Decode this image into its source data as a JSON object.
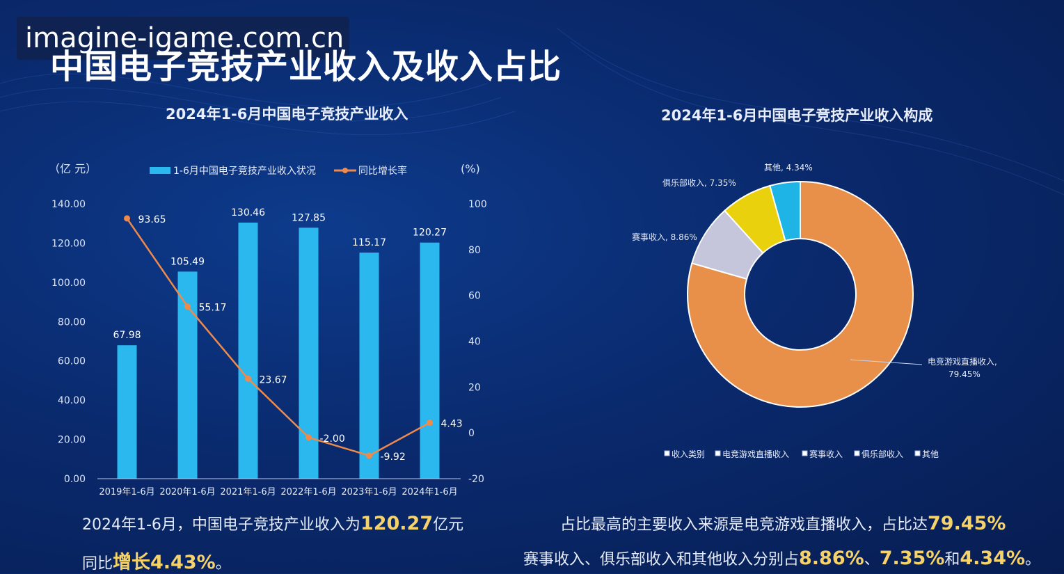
{
  "watermark": "imagine-igame.com.cn",
  "page_title": "中国电子竞技产业收入及收入占比",
  "colors": {
    "bar": "#2ab8ee",
    "line": "#f08a4b",
    "orange": "#e8904a",
    "lavender": "#c5c6dc",
    "yellow": "#e9d20d",
    "cyan": "#1fb4e6",
    "highlight": "#f6d36a"
  },
  "chart_data": [
    {
      "type": "bar",
      "title": "2024年1-6月中国电子竞技产业收入",
      "ylabel": "（亿 元）",
      "y2label": "(%)",
      "categories": [
        "2019年1-6月",
        "2020年1-6月",
        "2021年1-6月",
        "2022年1-6月",
        "2023年1-6月",
        "2024年1-6月"
      ],
      "ylim": [
        0,
        140
      ],
      "y_ticks": [
        "0.00",
        "20.00",
        "40.00",
        "60.00",
        "80.00",
        "100.00",
        "120.00",
        "140.00"
      ],
      "y2lim": [
        -20,
        100
      ],
      "y2_ticks": [
        "-20",
        "0",
        "20",
        "40",
        "60",
        "80",
        "100"
      ],
      "series": [
        {
          "name": "1-6月中国电子竞技产业收入状况",
          "type": "bar",
          "values": [
            67.98,
            105.49,
            130.46,
            127.85,
            115.17,
            120.27
          ],
          "labels": [
            "67.98",
            "105.49",
            "130.46",
            "127.85",
            "115.17",
            "120.27"
          ]
        },
        {
          "name": "同比增长率",
          "type": "line",
          "axis": "right",
          "values": [
            93.65,
            55.17,
            23.67,
            -2.0,
            -9.92,
            4.43
          ],
          "labels": [
            "93.65",
            "55.17",
            "23.67",
            "-2.00",
            "-9.92",
            "4.43"
          ]
        }
      ],
      "grid": false,
      "legend": "top"
    },
    {
      "type": "pie",
      "title": "2024年1-6月中国电子竞技产业收入构成",
      "donut": true,
      "slices": [
        {
          "name": "电竞游戏直播收入",
          "value": 79.45,
          "label": "电竞游戏直播收入,",
          "label2": "79.45%",
          "color": "#e8904a"
        },
        {
          "name": "赛事收入",
          "value": 8.86,
          "label": "赛事收入, 8.86%",
          "color": "#c5c6dc"
        },
        {
          "name": "俱乐部收入",
          "value": 7.35,
          "label": "俱乐部收入, 7.35%",
          "color": "#e9d20d"
        },
        {
          "name": "其他",
          "value": 4.34,
          "label": "其他, 4.34%",
          "color": "#1fb4e6"
        }
      ],
      "legend_entries": [
        "收入类别",
        "电竞游戏直播收入",
        "赛事收入",
        "俱乐部收入",
        "其他"
      ],
      "legend": "bottom"
    }
  ],
  "captions": {
    "left_line1_a": "2024年1-6月，中国电子竞技产业收入为",
    "left_line1_hl": "120.27",
    "left_line1_b": "亿元",
    "left_line2_a": "同比",
    "left_line2_hl": "增长4.43%",
    "left_line2_b": "。",
    "right_line1_a": "占比最高的主要收入来源是电竞游戏直播收入，占比达",
    "right_line1_hl": "79.45%",
    "right_line2_a": "赛事收入、俱乐部收入和其他收入分别占",
    "right_line2_hl1": "8.86%",
    "right_line2_sep1": "、",
    "right_line2_hl2": "7.35%",
    "right_line2_sep2": "和",
    "right_line2_hl3": "4.34%",
    "right_line2_b": "。"
  }
}
